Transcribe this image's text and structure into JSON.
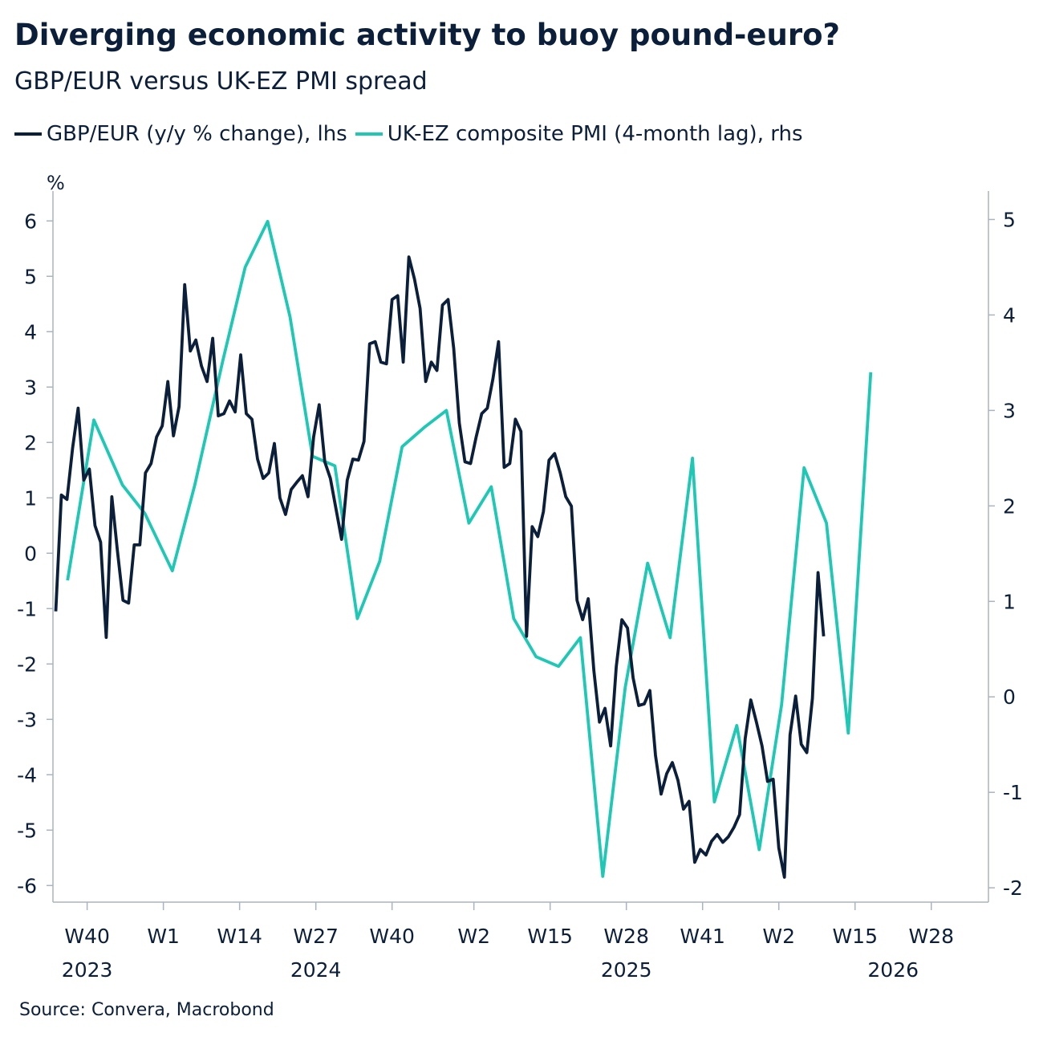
{
  "title": "Diverging economic activity to buoy pound-euro?",
  "subtitle": "GBP/EUR versus UK-EZ PMI spread",
  "unit_label": "%",
  "source": "Source: Convera, Macrobond",
  "chart_data": {
    "type": "line",
    "legend_position": "top-left",
    "grid": false,
    "x_ticks": [
      {
        "label": "W40",
        "t": 2.6
      },
      {
        "label": "W1",
        "t": 16.2
      },
      {
        "label": "W14",
        "t": 29.8
      },
      {
        "label": "W27",
        "t": 43.4
      },
      {
        "label": "W40",
        "t": 57.0
      },
      {
        "label": "W2",
        "t": 71.6
      },
      {
        "label": "W15",
        "t": 85.2
      },
      {
        "label": "W28",
        "t": 98.8
      },
      {
        "label": "W41",
        "t": 112.4
      },
      {
        "label": "W2",
        "t": 126.0
      },
      {
        "label": "W15",
        "t": 139.6
      },
      {
        "label": "W28",
        "t": 153.2
      }
    ],
    "year_labels": [
      {
        "label": "2023",
        "t": 2.6
      },
      {
        "label": "2024",
        "t": 43.4
      },
      {
        "label": "2025",
        "t": 98.8
      },
      {
        "label": "2026",
        "t": 146.4
      }
    ],
    "x_range": [
      -3.5,
      163.4
    ],
    "left_axis": {
      "ticks": [
        6,
        5,
        4,
        3,
        2,
        1,
        0,
        -1,
        -2,
        -3,
        -4,
        -5,
        -6
      ],
      "ylim": [
        -6.3,
        6.25
      ]
    },
    "right_axis": {
      "ticks": [
        5,
        4,
        3,
        2,
        1,
        0,
        -1,
        -2
      ],
      "ylim": [
        -2.15,
        5.13
      ]
    },
    "colors": {
      "gbp_eur": "#0b1f3a",
      "pmi_spread": "#1ec8b4"
    },
    "series": [
      {
        "name": "GBP/EUR (y/y % change), lhs",
        "axis": "left",
        "color": "#0b1f3a",
        "points": [
          [
            -3,
            -1.05
          ],
          [
            -2,
            1.05
          ],
          [
            -1,
            0.97
          ],
          [
            0,
            1.9
          ],
          [
            1,
            2.62
          ],
          [
            2,
            1.32
          ],
          [
            3,
            1.52
          ],
          [
            4,
            0.5
          ],
          [
            5,
            0.2
          ],
          [
            6,
            -1.52
          ],
          [
            7,
            1.02
          ],
          [
            8,
            0.05
          ],
          [
            9,
            -0.85
          ],
          [
            10,
            -0.9
          ],
          [
            11,
            0.15
          ],
          [
            12,
            0.15
          ],
          [
            13,
            1.45
          ],
          [
            14,
            1.62
          ],
          [
            15,
            2.1
          ],
          [
            16,
            2.3
          ],
          [
            17,
            3.1
          ],
          [
            18,
            2.12
          ],
          [
            19,
            2.65
          ],
          [
            20,
            4.85
          ],
          [
            21,
            3.65
          ],
          [
            22,
            3.85
          ],
          [
            23,
            3.38
          ],
          [
            24,
            3.1
          ],
          [
            25,
            3.88
          ],
          [
            26,
            2.48
          ],
          [
            27,
            2.52
          ],
          [
            28,
            2.75
          ],
          [
            29,
            2.55
          ],
          [
            30,
            3.58
          ],
          [
            31,
            2.52
          ],
          [
            32,
            2.42
          ],
          [
            33,
            1.7
          ],
          [
            34,
            1.35
          ],
          [
            35,
            1.45
          ],
          [
            36,
            1.98
          ],
          [
            37,
            1.0
          ],
          [
            38,
            0.7
          ],
          [
            39,
            1.15
          ],
          [
            40,
            1.28
          ],
          [
            41,
            1.4
          ],
          [
            42,
            1.02
          ],
          [
            43,
            2.1
          ],
          [
            44,
            2.68
          ],
          [
            45,
            1.65
          ],
          [
            46,
            1.35
          ],
          [
            47,
            0.8
          ],
          [
            48,
            0.25
          ],
          [
            49,
            1.32
          ],
          [
            50,
            1.7
          ],
          [
            51,
            1.68
          ],
          [
            52,
            2.02
          ],
          [
            53,
            3.78
          ],
          [
            54,
            3.82
          ],
          [
            55,
            3.45
          ],
          [
            56,
            3.42
          ],
          [
            57,
            4.58
          ],
          [
            58,
            4.65
          ],
          [
            59,
            3.45
          ],
          [
            60,
            5.35
          ],
          [
            61,
            4.95
          ],
          [
            62,
            4.42
          ],
          [
            63,
            3.1
          ],
          [
            64,
            3.45
          ],
          [
            65,
            3.3
          ],
          [
            66,
            4.48
          ],
          [
            67,
            4.58
          ],
          [
            68,
            3.7
          ],
          [
            69,
            2.35
          ],
          [
            70,
            1.65
          ],
          [
            71,
            1.62
          ],
          [
            72,
            2.1
          ],
          [
            73,
            2.52
          ],
          [
            74,
            2.62
          ],
          [
            75,
            3.15
          ],
          [
            76,
            3.82
          ],
          [
            77,
            1.55
          ],
          [
            78,
            1.62
          ],
          [
            79,
            2.42
          ],
          [
            80,
            2.2
          ],
          [
            81,
            -1.5
          ],
          [
            82,
            0.48
          ],
          [
            83,
            0.3
          ],
          [
            84,
            0.75
          ],
          [
            85,
            1.68
          ],
          [
            86,
            1.8
          ],
          [
            87,
            1.45
          ],
          [
            88,
            1.02
          ],
          [
            89,
            0.85
          ],
          [
            90,
            -0.85
          ],
          [
            91,
            -1.2
          ],
          [
            92,
            -0.82
          ],
          [
            93,
            -2.12
          ],
          [
            94,
            -3.05
          ],
          [
            95,
            -2.8
          ],
          [
            96,
            -3.48
          ],
          [
            97,
            -2.05
          ],
          [
            98,
            -1.2
          ],
          [
            99,
            -1.35
          ],
          [
            100,
            -2.25
          ],
          [
            101,
            -2.75
          ],
          [
            102,
            -2.72
          ],
          [
            103,
            -2.48
          ],
          [
            104,
            -3.65
          ],
          [
            105,
            -4.35
          ],
          [
            106,
            -3.98
          ],
          [
            107,
            -3.78
          ],
          [
            108,
            -4.1
          ],
          [
            109,
            -4.62
          ],
          [
            110,
            -4.48
          ],
          [
            111,
            -5.58
          ],
          [
            112,
            -5.35
          ],
          [
            113,
            -5.45
          ],
          [
            114,
            -5.2
          ],
          [
            115,
            -5.08
          ],
          [
            116,
            -5.22
          ],
          [
            117,
            -5.12
          ],
          [
            118,
            -4.95
          ],
          [
            119,
            -4.72
          ],
          [
            120,
            -3.35
          ],
          [
            121,
            -2.65
          ],
          [
            122,
            -3.05
          ],
          [
            123,
            -3.48
          ],
          [
            124,
            -4.12
          ],
          [
            125,
            -4.08
          ],
          [
            126,
            -5.32
          ],
          [
            127,
            -5.85
          ],
          [
            128,
            -3.28
          ],
          [
            129,
            -2.58
          ],
          [
            130,
            -3.45
          ],
          [
            131,
            -3.6
          ],
          [
            132,
            -2.62
          ],
          [
            133,
            -0.35
          ],
          [
            134,
            -1.5
          ]
        ]
      },
      {
        "name": "UK-EZ composite PMI (4-month lag), rhs",
        "axis": "right",
        "color": "#1ec8b4",
        "points": [
          [
            -0.9,
            1.22
          ],
          [
            3.8,
            2.9
          ],
          [
            8.9,
            2.22
          ],
          [
            12.9,
            1.92
          ],
          [
            17.8,
            1.32
          ],
          [
            21.8,
            2.22
          ],
          [
            26.8,
            3.52
          ],
          [
            30.8,
            4.5
          ],
          [
            34.8,
            4.98
          ],
          [
            38.8,
            3.98
          ],
          [
            42.8,
            2.52
          ],
          [
            46.8,
            2.42
          ],
          [
            50.8,
            0.82
          ],
          [
            54.8,
            1.42
          ],
          [
            58.8,
            2.62
          ],
          [
            62.7,
            2.82
          ],
          [
            66.7,
            3.0
          ],
          [
            70.7,
            1.82
          ],
          [
            74.7,
            2.2
          ],
          [
            78.7,
            0.82
          ],
          [
            82.7,
            0.42
          ],
          [
            86.7,
            0.32
          ],
          [
            90.6,
            0.62
          ],
          [
            94.6,
            -1.88
          ],
          [
            98.6,
            0.1
          ],
          [
            102.6,
            1.4
          ],
          [
            106.6,
            0.62
          ],
          [
            110.6,
            2.5
          ],
          [
            114.5,
            -1.1
          ],
          [
            118.5,
            -0.3
          ],
          [
            122.5,
            -1.6
          ],
          [
            126.5,
            -0.08
          ],
          [
            130.5,
            2.4
          ],
          [
            134.5,
            1.82
          ],
          [
            138.4,
            -0.38
          ],
          [
            142.4,
            3.4
          ]
        ]
      }
    ]
  }
}
